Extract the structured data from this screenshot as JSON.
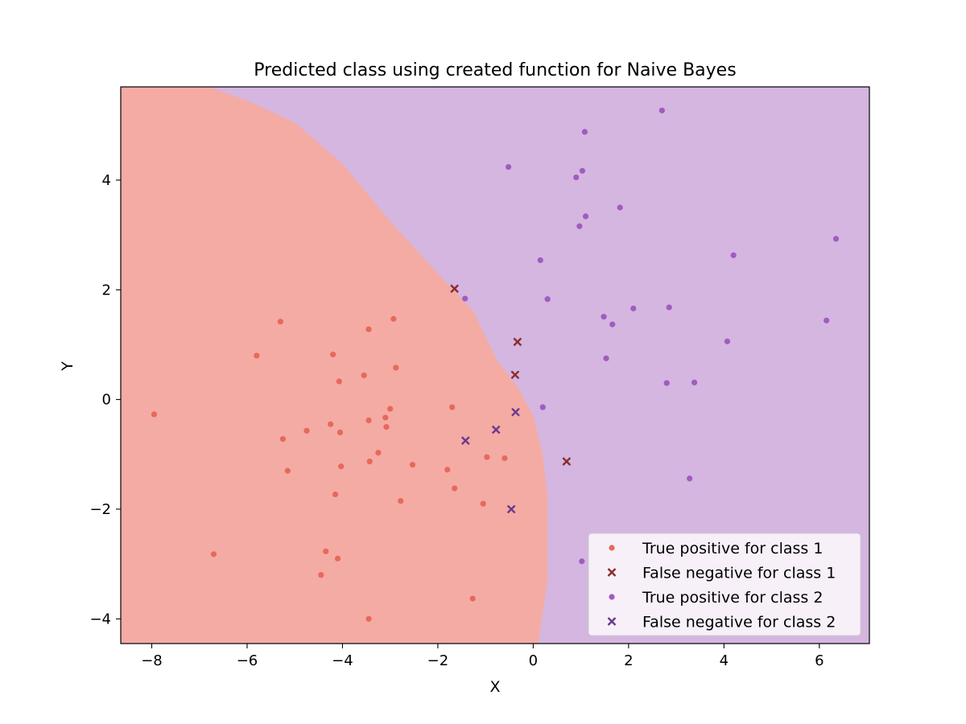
{
  "chart_data": {
    "type": "scatter",
    "title": "Predicted class using created function for Naive Bayes",
    "xlabel": "X",
    "ylabel": "Y",
    "xlim": [
      -8.65,
      7.05
    ],
    "ylim": [
      -4.45,
      5.7
    ],
    "xticks": [
      -8,
      -6,
      -4,
      -2,
      0,
      2,
      4,
      6
    ],
    "yticks": [
      -4,
      -2,
      0,
      2,
      4
    ],
    "xtick_labels": [
      "−8",
      "−6",
      "−4",
      "−2",
      "0",
      "2",
      "4",
      "6"
    ],
    "ytick_labels": [
      "−4",
      "−2",
      "0",
      "2",
      "4"
    ],
    "grid": false,
    "legend_position": "lower-right",
    "background": {
      "description": "decision regions",
      "class1_region_color": "#f4aba4",
      "class2_region_color": "#d4b6e0",
      "boundary": [
        [
          -6.8,
          5.7
        ],
        [
          -6.0,
          5.45
        ],
        [
          -5.0,
          5.05
        ],
        [
          -4.0,
          4.3
        ],
        [
          -3.0,
          3.25
        ],
        [
          -2.0,
          2.3
        ],
        [
          -1.25,
          1.6
        ],
        [
          -0.75,
          0.7
        ],
        [
          -0.3,
          0.2
        ],
        [
          0.0,
          -0.3
        ],
        [
          0.2,
          -1.0
        ],
        [
          0.3,
          -1.8
        ],
        [
          0.3,
          -3.3
        ],
        [
          0.1,
          -4.45
        ]
      ]
    },
    "series": [
      {
        "name": "True positive for class 1",
        "marker": "dot",
        "color": "#e8685a",
        "points": [
          [
            -7.95,
            -0.27
          ],
          [
            -6.7,
            -2.82
          ],
          [
            -5.8,
            0.8
          ],
          [
            -5.3,
            1.42
          ],
          [
            -5.25,
            -0.72
          ],
          [
            -5.15,
            -1.3
          ],
          [
            -4.75,
            -0.57
          ],
          [
            -4.45,
            -3.2
          ],
          [
            -4.35,
            -2.77
          ],
          [
            -4.25,
            -0.45
          ],
          [
            -4.2,
            0.82
          ],
          [
            -4.15,
            -1.73
          ],
          [
            -4.1,
            -2.9
          ],
          [
            -4.07,
            0.33
          ],
          [
            -4.05,
            -0.6
          ],
          [
            -4.03,
            -1.22
          ],
          [
            -3.55,
            0.44
          ],
          [
            -3.45,
            1.28
          ],
          [
            -3.45,
            -0.38
          ],
          [
            -3.43,
            -1.13
          ],
          [
            -3.45,
            -4.0
          ],
          [
            -3.25,
            -0.97
          ],
          [
            -3.1,
            -0.33
          ],
          [
            -3.08,
            -0.5
          ],
          [
            -3.0,
            -0.17
          ],
          [
            -2.93,
            1.47
          ],
          [
            -2.88,
            0.58
          ],
          [
            -2.78,
            -1.85
          ],
          [
            -2.53,
            -1.19
          ],
          [
            -1.8,
            -1.28
          ],
          [
            -1.7,
            -0.14
          ],
          [
            -1.65,
            -1.62
          ],
          [
            -1.27,
            -3.63
          ],
          [
            -1.05,
            -1.9
          ],
          [
            -0.97,
            -1.05
          ],
          [
            -0.6,
            -1.07
          ]
        ]
      },
      {
        "name": "False negative for class 1",
        "marker": "x",
        "color": "#8b2d2d",
        "points": [
          [
            -1.65,
            2.02
          ],
          [
            -0.33,
            1.05
          ],
          [
            -0.38,
            0.45
          ],
          [
            0.7,
            -1.13
          ]
        ]
      },
      {
        "name": "True positive for class 2",
        "marker": "dot",
        "color": "#a25bc0",
        "points": [
          [
            -0.52,
            4.24
          ],
          [
            0.15,
            2.54
          ],
          [
            0.2,
            -0.14
          ],
          [
            0.3,
            1.83
          ],
          [
            -1.43,
            1.84
          ],
          [
            0.9,
            4.05
          ],
          [
            0.97,
            3.16
          ],
          [
            1.03,
            4.17
          ],
          [
            1.08,
            4.88
          ],
          [
            1.1,
            3.34
          ],
          [
            1.02,
            -2.95
          ],
          [
            1.48,
            1.51
          ],
          [
            1.53,
            0.75
          ],
          [
            1.66,
            1.37
          ],
          [
            1.82,
            3.5
          ],
          [
            2.1,
            1.66
          ],
          [
            2.7,
            5.27
          ],
          [
            2.8,
            0.3
          ],
          [
            2.85,
            1.68
          ],
          [
            3.28,
            -1.44
          ],
          [
            3.38,
            0.31
          ],
          [
            4.07,
            1.06
          ],
          [
            4.2,
            2.63
          ],
          [
            6.15,
            1.44
          ],
          [
            6.35,
            2.93
          ]
        ]
      },
      {
        "name": "False negative for class 2",
        "marker": "x",
        "color": "#6b3a8b",
        "points": [
          [
            -1.42,
            -0.75
          ],
          [
            -0.78,
            -0.55
          ],
          [
            -0.37,
            -0.23
          ],
          [
            -0.46,
            -2.0
          ]
        ]
      }
    ]
  }
}
